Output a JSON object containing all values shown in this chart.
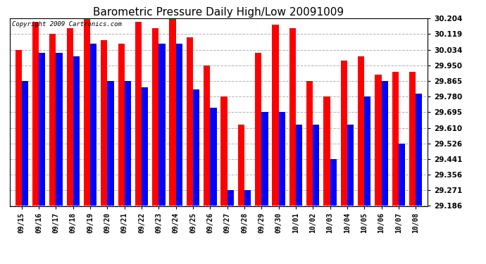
{
  "title": "Barometric Pressure Daily High/Low 20091009",
  "copyright": "Copyright 2009 Cartronics.com",
  "dates": [
    "09/15",
    "09/16",
    "09/17",
    "09/18",
    "09/19",
    "09/20",
    "09/21",
    "09/22",
    "09/23",
    "09/24",
    "09/25",
    "09/26",
    "09/27",
    "09/28",
    "09/29",
    "09/30",
    "10/01",
    "10/02",
    "10/03",
    "10/04",
    "10/05",
    "10/06",
    "10/07",
    "10/08"
  ],
  "highs": [
    30.034,
    30.187,
    30.119,
    30.153,
    30.204,
    30.085,
    30.068,
    30.187,
    30.153,
    30.204,
    30.102,
    29.95,
    29.78,
    29.627,
    30.017,
    30.17,
    30.153,
    29.865,
    29.78,
    29.975,
    29.999,
    29.9,
    29.915,
    29.915
  ],
  "lows": [
    29.865,
    30.017,
    30.017,
    30.0,
    30.068,
    29.865,
    29.865,
    29.83,
    30.068,
    30.068,
    29.82,
    29.72,
    29.271,
    29.271,
    29.695,
    29.695,
    29.627,
    29.627,
    29.441,
    29.627,
    29.78,
    29.865,
    29.525,
    29.795
  ],
  "yticks": [
    29.186,
    29.271,
    29.356,
    29.441,
    29.526,
    29.61,
    29.695,
    29.78,
    29.865,
    29.95,
    30.034,
    30.119,
    30.204
  ],
  "ymin": 29.186,
  "ymax": 30.204,
  "bar_width": 0.38,
  "high_color": "#FF0000",
  "low_color": "#0000FF",
  "bg_color": "#FFFFFF",
  "grid_color": "#AAAAAA",
  "title_fontsize": 11,
  "copyright_fontsize": 6.5
}
